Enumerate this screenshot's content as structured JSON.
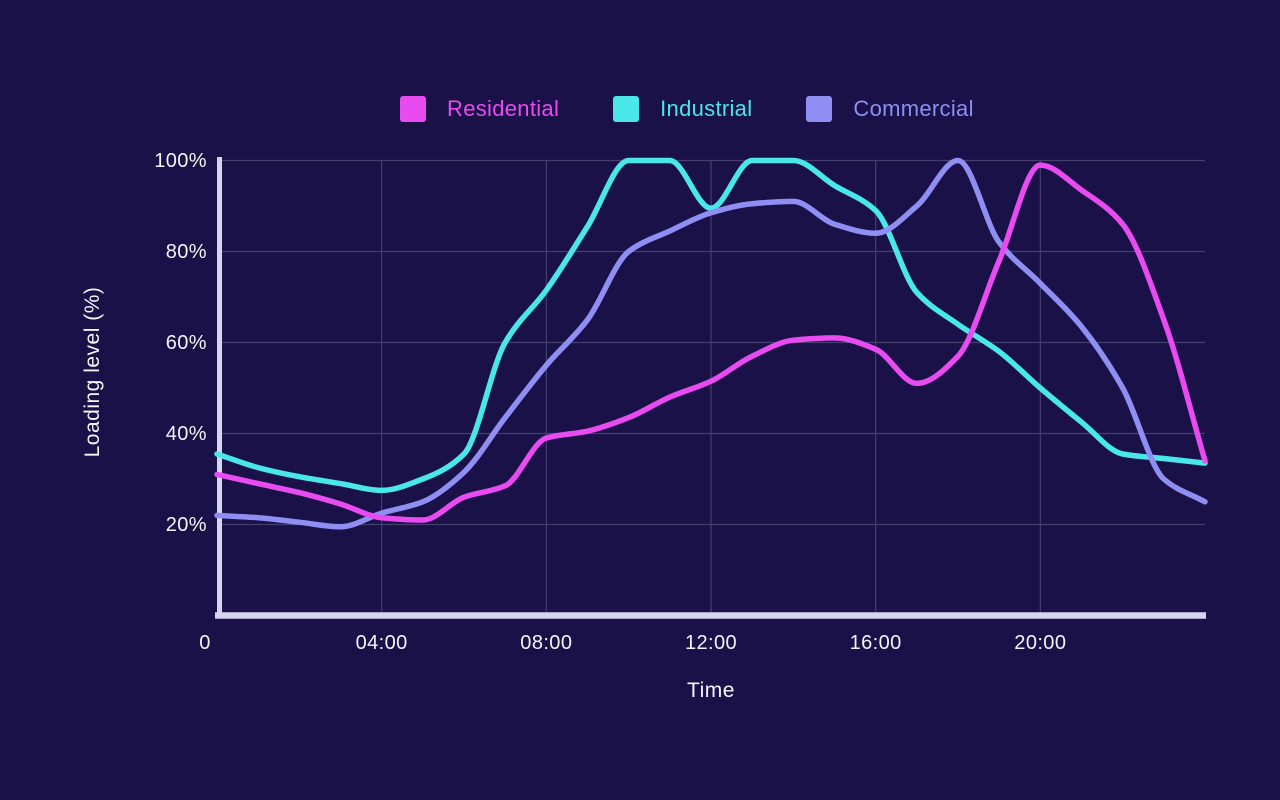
{
  "colors": {
    "background": "#1a1148",
    "axis_line": "#d6d5f0",
    "grid_line": "#453f6f",
    "tick_text": "#f4f3fa",
    "residential": "#e84bf0",
    "industrial": "#49e7e9",
    "commercial": "#8e8ef3"
  },
  "legend": {
    "items": [
      {
        "label": "Residential",
        "color": "#e84bf0"
      },
      {
        "label": "Industrial",
        "color": "#49e7e9"
      },
      {
        "label": "Commercial",
        "color": "#8e8ef3"
      }
    ]
  },
  "axes": {
    "y_title": "Loading level (%)",
    "x_title": "Time"
  },
  "chart_data": {
    "type": "line",
    "title": "",
    "xlabel": "Time",
    "ylabel": "Loading level (%)",
    "xlim": [
      0,
      24
    ],
    "ylim": [
      0,
      100
    ],
    "grid": true,
    "legend_position": "top",
    "x_hours": [
      0,
      1,
      2,
      3,
      4,
      5,
      6,
      7,
      8,
      9,
      10,
      11,
      12,
      13,
      14,
      15,
      16,
      17,
      18,
      19,
      20,
      21,
      22,
      23,
      24
    ],
    "x_ticks": [
      {
        "label": "0",
        "hour": 0
      },
      {
        "label": "04:00",
        "hour": 4
      },
      {
        "label": "08:00",
        "hour": 8
      },
      {
        "label": "12:00",
        "hour": 12
      },
      {
        "label": "16:00",
        "hour": 16
      },
      {
        "label": "20:00",
        "hour": 20
      }
    ],
    "y_ticks": [
      {
        "label": "100%",
        "value": 100
      },
      {
        "label": "80%",
        "value": 80
      },
      {
        "label": "60%",
        "value": 60
      },
      {
        "label": "40%",
        "value": 40
      },
      {
        "label": "20%",
        "value": 20
      }
    ],
    "series": [
      {
        "name": "Residential",
        "color": "#e84bf0",
        "values": [
          31,
          29,
          27,
          24.5,
          21.5,
          21,
          26,
          28.5,
          39,
          40.5,
          43.5,
          48,
          51.5,
          57,
          60.5,
          61,
          58.5,
          51,
          57,
          78,
          99,
          93.5,
          86,
          65,
          34
        ]
      },
      {
        "name": "Industrial",
        "color": "#49e7e9",
        "values": [
          35.5,
          32.5,
          30.5,
          29,
          27.5,
          30,
          35.5,
          60,
          71.5,
          85.5,
          100,
          100,
          89.5,
          100,
          100,
          94.5,
          89,
          71,
          64,
          58,
          50,
          42.5,
          35.5,
          34.5,
          33.5
        ]
      },
      {
        "name": "Commercial",
        "color": "#8e8ef3",
        "values": [
          22,
          21.5,
          20.5,
          19.5,
          22.5,
          25,
          31.5,
          43.5,
          55,
          65,
          80,
          84.5,
          88.5,
          90.5,
          91,
          86,
          84,
          90,
          100,
          82,
          73,
          63.5,
          50,
          30,
          25
        ]
      }
    ]
  }
}
